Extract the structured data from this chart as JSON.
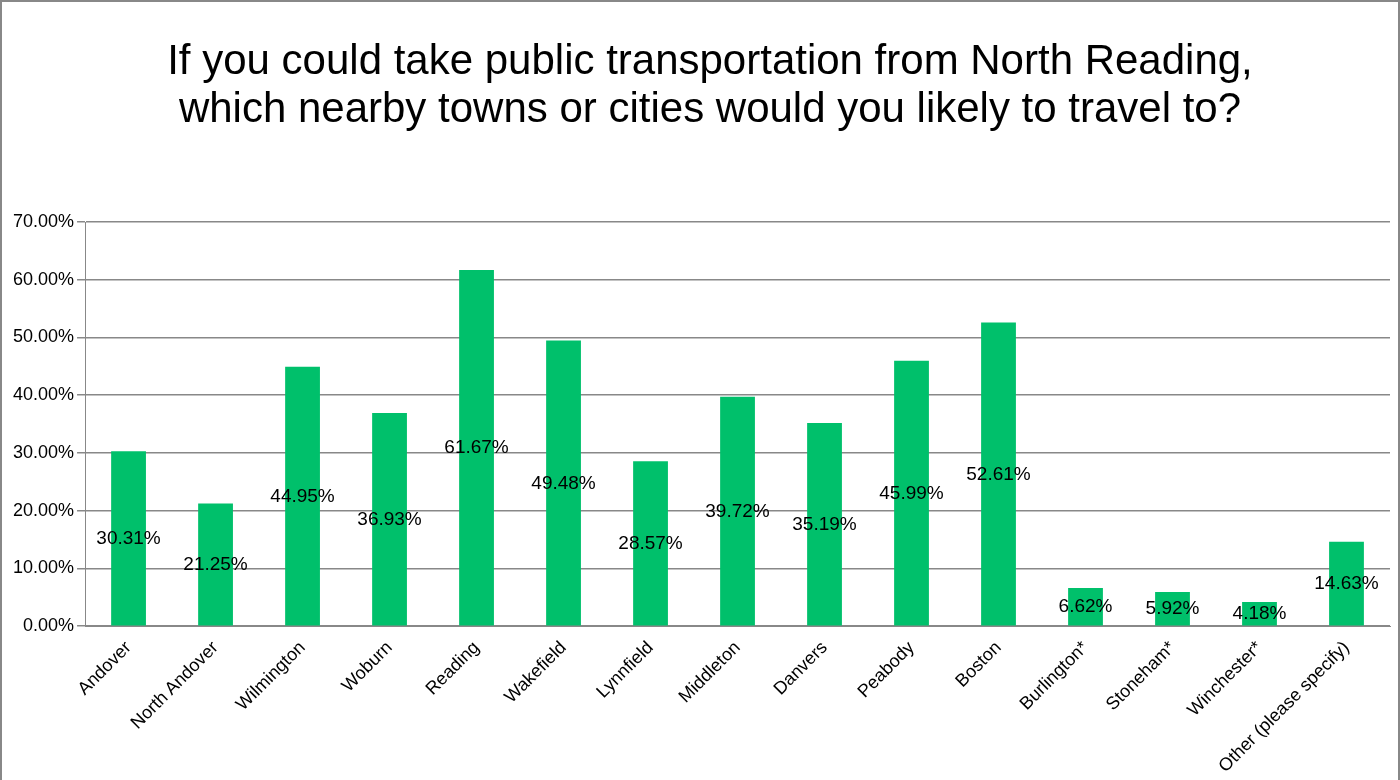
{
  "chart_data": {
    "type": "bar",
    "title": "If you could take public transportation from North Reading, which nearby towns or cities would you likely to travel to?",
    "categories": [
      "Andover",
      "North Andover",
      "Wilmington",
      "Woburn",
      "Reading",
      "Wakefield",
      "Lynnfield",
      "Middleton",
      "Danvers",
      "Peabody",
      "Boston",
      "Burlington*",
      "Stoneham*",
      "Winchester*",
      "Other (please specify)"
    ],
    "values": [
      30.31,
      21.25,
      44.95,
      36.93,
      61.67,
      49.48,
      28.57,
      39.72,
      35.19,
      45.99,
      52.61,
      6.62,
      5.92,
      4.18,
      14.63
    ],
    "value_labels": [
      "30.31%",
      "21.25%",
      "44.95%",
      "36.93%",
      "61.67%",
      "49.48%",
      "28.57%",
      "39.72%",
      "35.19%",
      "45.99%",
      "52.61%",
      "6.62%",
      "5.92%",
      "4.18%",
      "14.63%"
    ],
    "color": "#00c06b",
    "ylim": [
      0,
      70
    ],
    "yticks": [
      {
        "value": 0,
        "label": "0.00%"
      },
      {
        "value": 10,
        "label": "10.00%"
      },
      {
        "value": 20,
        "label": "20.00%"
      },
      {
        "value": 30,
        "label": "30.00%"
      },
      {
        "value": 40,
        "label": "40.00%"
      },
      {
        "value": 50,
        "label": "50.00%"
      },
      {
        "value": 60,
        "label": "60.00%"
      },
      {
        "value": 70,
        "label": "70.00%"
      }
    ],
    "grid": "y",
    "legend": false
  }
}
